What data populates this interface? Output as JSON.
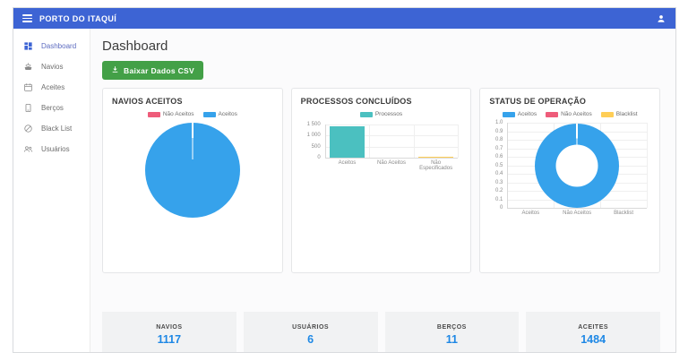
{
  "app": {
    "topbar": {
      "title": "PORTO DO ITAQUÍ",
      "bg_color": "#3d64d4"
    }
  },
  "sidebar": {
    "items": [
      {
        "label": "Dashboard",
        "icon": "dashboard-icon",
        "active": true
      },
      {
        "label": "Navios",
        "icon": "ship-icon",
        "active": false
      },
      {
        "label": "Aceites",
        "icon": "calendar-icon",
        "active": false
      },
      {
        "label": "Berços",
        "icon": "dock-icon",
        "active": false
      },
      {
        "label": "Black List",
        "icon": "block-icon",
        "active": false
      },
      {
        "label": "Usuários",
        "icon": "users-icon",
        "active": false
      }
    ]
  },
  "main": {
    "page_title": "Dashboard",
    "download_button": {
      "label": "Baixar Dados CSV",
      "color": "#43a047",
      "icon": "download-icon"
    }
  },
  "stats": [
    {
      "label": "NAVIOS",
      "value": "1117"
    },
    {
      "label": "USUÁRIOS",
      "value": "6"
    },
    {
      "label": "BERÇOS",
      "value": "11"
    },
    {
      "label": "ACEITES",
      "value": "1484"
    }
  ],
  "stats_value_color": "#1e88e5",
  "chart_data": [
    {
      "type": "pie",
      "title": "NAVIOS ACEITOS",
      "legend": [
        {
          "label": "Não Aceitos",
          "color": "#ee5c7a"
        },
        {
          "label": "Aceitos",
          "color": "#36a2eb"
        }
      ],
      "labels": [
        "Não Aceitos",
        "Aceitos"
      ],
      "values_pct": [
        0.5,
        99.5
      ],
      "legend_position": "top"
    },
    {
      "type": "bar",
      "title": "PROCESSOS CONCLUÍDOS",
      "legend": [
        {
          "label": "Processos",
          "color": "#4bc0c0"
        }
      ],
      "categories": [
        "Aceitos",
        "Não Aceitos",
        "Não Especificados"
      ],
      "values": [
        1430,
        0,
        20
      ],
      "bar_colors": [
        "#4bc0c0",
        "#4bc0c0",
        "#ffce56"
      ],
      "yticks": [
        "1 500",
        "1 000",
        "500",
        "0"
      ],
      "ylim": [
        0,
        1500
      ],
      "grid": true
    },
    {
      "type": "doughnut",
      "title": "STATUS DE OPERAÇÃO",
      "legend": [
        {
          "label": "Aceitos",
          "color": "#36a2eb"
        },
        {
          "label": "Não Aceitos",
          "color": "#ee5c7a"
        },
        {
          "label": "Blacklist",
          "color": "#ffce56"
        }
      ],
      "labels": [
        "Aceitos",
        "Não Aceitos",
        "Blacklist"
      ],
      "values_pct": [
        99.5,
        0.4,
        0.1
      ],
      "categories": [
        "Aceitos",
        "Não Aceitos",
        "Blacklist"
      ],
      "yticks": [
        "1.0",
        "0.9",
        "0.8",
        "0.7",
        "0.6",
        "0.5",
        "0.4",
        "0.3",
        "0.2",
        "0.1",
        "0"
      ],
      "ylim": [
        0,
        1.0
      ],
      "grid": true
    }
  ]
}
